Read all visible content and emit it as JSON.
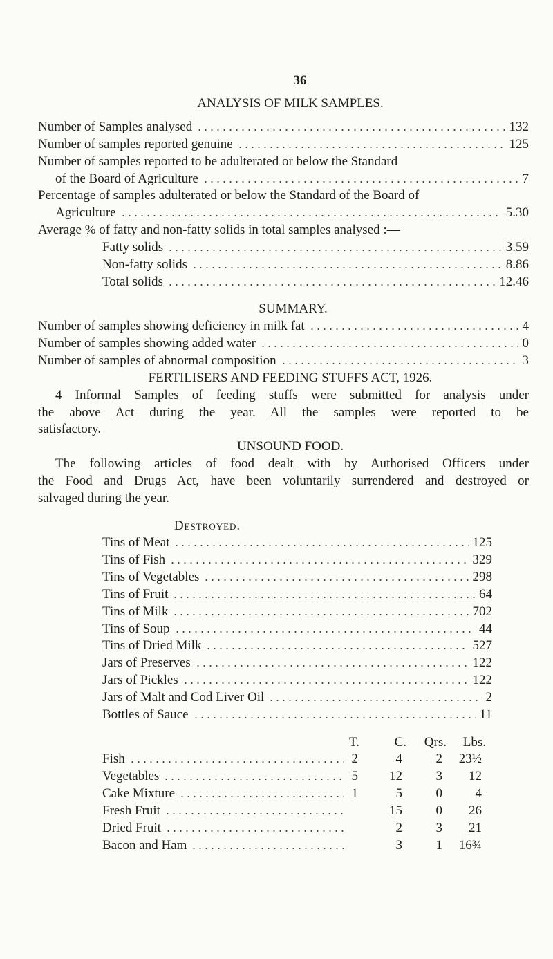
{
  "page_number": "36",
  "milk": {
    "title": "ANALYSIS OF MILK SAMPLES.",
    "rows": [
      {
        "lines": [
          "Number of Samples analysed"
        ],
        "value": "132"
      },
      {
        "lines": [
          "Number of samples reported genuine"
        ],
        "value": "125"
      },
      {
        "lines": [
          "Number of samples reported to be adulterated or below the Standard",
          "of the Board of Agriculture"
        ],
        "value": "7"
      },
      {
        "lines": [
          "Percentage of samples adulterated or below the Standard of the Board of",
          "Agriculture"
        ],
        "value": "5.30"
      }
    ],
    "average_heading": "Average % of fatty and non-fatty solids in total samples analysed :—",
    "average_rows": [
      {
        "label": "Fatty solids",
        "value": "3.59"
      },
      {
        "label": "Non-fatty solids",
        "value": "8.86"
      },
      {
        "label": "Total solids",
        "value": "12.46"
      }
    ]
  },
  "summary": {
    "title": "SUMMARY.",
    "rows": [
      {
        "label": "Number of samples showing deficiency in milk fat",
        "value": "4"
      },
      {
        "label": "Number of samples showing added water",
        "value": "0"
      },
      {
        "label": "Number of samples of abnormal composition",
        "value": "3"
      }
    ]
  },
  "fertilisers": {
    "title": "FERTILISERS AND FEEDING STUFFS ACT, 1926.",
    "lines": [
      "4 Informal Samples of feeding stuffs were submitted for analysis under",
      "the above Act during the year. All the samples were reported to be",
      "satisfactory."
    ]
  },
  "unsound": {
    "title": "UNSOUND FOOD.",
    "lines": [
      "The following articles of food dealt with by Authorised Officers under",
      "the Food and Drugs Act, have been voluntarily surrendered and destroyed or",
      "salvaged during the year."
    ]
  },
  "destroyed": {
    "title": "Destroyed.",
    "rows": [
      {
        "label": "Tins of Meat",
        "value": "125"
      },
      {
        "label": "Tins of Fish",
        "value": "329"
      },
      {
        "label": "Tins of Vegetables",
        "value": "298"
      },
      {
        "label": "Tins of Fruit",
        "value": "64"
      },
      {
        "label": "Tins of Milk",
        "value": "702"
      },
      {
        "label": "Tins of Soup",
        "value": "44"
      },
      {
        "label": "Tins of Dried Milk",
        "value": "527"
      },
      {
        "label": "Jars of Preserves",
        "value": "122"
      },
      {
        "label": "Jars of Pickles",
        "value": "122"
      },
      {
        "label": "Jars of Malt and Cod Liver Oil",
        "value": "2"
      },
      {
        "label": "Bottles of Sauce",
        "value": "11"
      }
    ]
  },
  "weights": {
    "headers": [
      "T.",
      "C.",
      "Qrs.",
      "Lbs."
    ],
    "rows": [
      {
        "label": "Fish",
        "values": [
          "2",
          "4",
          "2",
          "23½"
        ]
      },
      {
        "label": "Vegetables",
        "values": [
          "5",
          "12",
          "3",
          "12"
        ]
      },
      {
        "label": "Cake Mixture",
        "values": [
          "1",
          "5",
          "0",
          "4"
        ]
      },
      {
        "label": "Fresh Fruit",
        "values": [
          null,
          "15",
          "0",
          "26"
        ]
      },
      {
        "label": "Dried Fruit",
        "values": [
          null,
          "2",
          "3",
          "21"
        ]
      },
      {
        "label": "Bacon and Ham",
        "values": [
          null,
          "3",
          "1",
          "16¾"
        ]
      }
    ]
  }
}
